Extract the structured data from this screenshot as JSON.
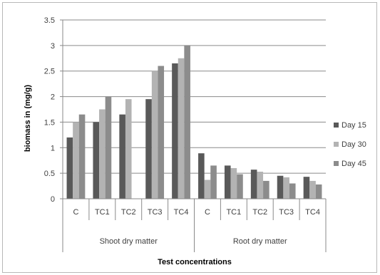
{
  "chart_data": {
    "type": "bar",
    "title": "",
    "ylabel": "biomass in (mg/g)",
    "xlabel": "Test concentrations",
    "ylim": [
      0,
      3.5
    ],
    "ytick_step": 0.5,
    "grid": true,
    "legend_position": "right",
    "groups": [
      {
        "label": "Shoot dry matter",
        "categories": [
          "C",
          "TC1",
          "TC2",
          "TC3",
          "TC4"
        ]
      },
      {
        "label": "Root dry matter",
        "categories": [
          "C",
          "TC1",
          "TC2",
          "TC3",
          "TC4"
        ]
      }
    ],
    "series": [
      {
        "name": "Day 15",
        "color": "#595959",
        "values": [
          1.2,
          1.5,
          1.65,
          1.95,
          2.65,
          0.89,
          0.65,
          0.57,
          0.45,
          0.43
        ]
      },
      {
        "name": "Day 30",
        "color": "#b3b3b3",
        "values": [
          1.5,
          1.75,
          1.95,
          2.5,
          2.75,
          0.37,
          0.6,
          0.53,
          0.42,
          0.35
        ]
      },
      {
        "name": "Day 45",
        "color": "#8c8c8c",
        "values": [
          1.65,
          2.0,
          0,
          2.6,
          3.0,
          0.65,
          0.48,
          0.35,
          0.3,
          0.28
        ]
      }
    ]
  }
}
